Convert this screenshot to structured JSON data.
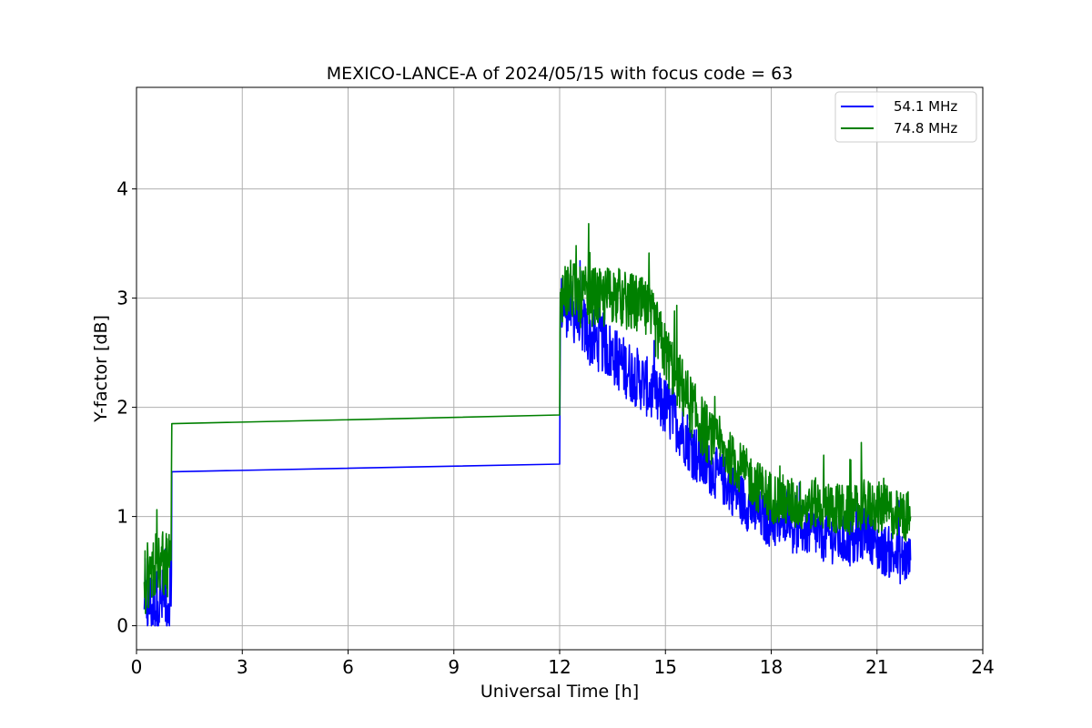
{
  "chart_data": {
    "type": "line",
    "title": "MEXICO-LANCE-A of 2024/05/15 with focus code = 63",
    "xlabel": "Universal Time [h]",
    "ylabel": "Y-factor [dB]",
    "xlim": [
      0,
      24
    ],
    "ylim": [
      -0.22,
      4.93
    ],
    "xticks": [
      0,
      3,
      6,
      9,
      12,
      15,
      18,
      21,
      24
    ],
    "yticks": [
      0,
      1,
      2,
      3,
      4
    ],
    "grid": true,
    "legend_position": "top-right",
    "series": [
      {
        "name": "54.1 MHz",
        "color": "#0000ff",
        "x": [
          0.22,
          0.3,
          0.4,
          0.5,
          0.6,
          0.7,
          0.8,
          0.9,
          0.98,
          1.0,
          12.0,
          12.02,
          12.3,
          12.6,
          12.9,
          13.2,
          13.5,
          13.8,
          14.1,
          14.4,
          14.7,
          15.0,
          15.3,
          15.6,
          15.9,
          16.2,
          16.5,
          16.8,
          17.1,
          17.4,
          17.7,
          18.0,
          18.3,
          18.5,
          18.6,
          18.9,
          19.2,
          19.5,
          19.8,
          20.1,
          20.4,
          20.7,
          21.0,
          21.3,
          21.6,
          21.95
        ],
        "y": [
          0.15,
          0.18,
          0.2,
          0.18,
          0.22,
          0.2,
          0.25,
          0.2,
          0.18,
          1.41,
          1.48,
          2.95,
          2.9,
          2.78,
          2.62,
          2.6,
          2.48,
          2.38,
          2.3,
          2.22,
          2.08,
          2.0,
          1.88,
          1.72,
          1.55,
          1.45,
          1.38,
          1.28,
          1.18,
          1.08,
          1.0,
          0.95,
          0.92,
          1.1,
          0.9,
          0.88,
          0.86,
          0.82,
          0.8,
          0.78,
          0.75,
          0.9,
          0.72,
          0.68,
          0.62,
          0.6
        ]
      },
      {
        "name": "74.8 MHz",
        "color": "#008000",
        "x": [
          0.22,
          0.3,
          0.4,
          0.5,
          0.6,
          0.7,
          0.8,
          0.9,
          0.98,
          1.0,
          12.0,
          12.02,
          12.3,
          12.6,
          12.9,
          13.2,
          13.5,
          13.8,
          14.1,
          14.4,
          14.7,
          15.0,
          15.3,
          15.6,
          15.9,
          16.2,
          16.5,
          16.8,
          17.1,
          17.4,
          17.7,
          18.0,
          18.3,
          18.6,
          18.9,
          19.2,
          19.5,
          19.8,
          20.1,
          20.4,
          20.6,
          20.9,
          21.3,
          21.6,
          21.95
        ],
        "y": [
          0.4,
          0.45,
          0.5,
          0.55,
          0.5,
          0.55,
          0.6,
          0.58,
          0.6,
          1.85,
          1.93,
          3.05,
          3.08,
          3.0,
          3.02,
          2.98,
          3.05,
          2.98,
          2.95,
          2.9,
          2.75,
          2.5,
          2.3,
          2.1,
          1.9,
          1.75,
          1.65,
          1.55,
          1.45,
          1.35,
          1.25,
          1.18,
          1.15,
          1.12,
          1.1,
          1.12,
          1.1,
          1.08,
          1.05,
          1.05,
          1.1,
          1.1,
          1.05,
          1.0,
          1.0
        ]
      }
    ]
  }
}
